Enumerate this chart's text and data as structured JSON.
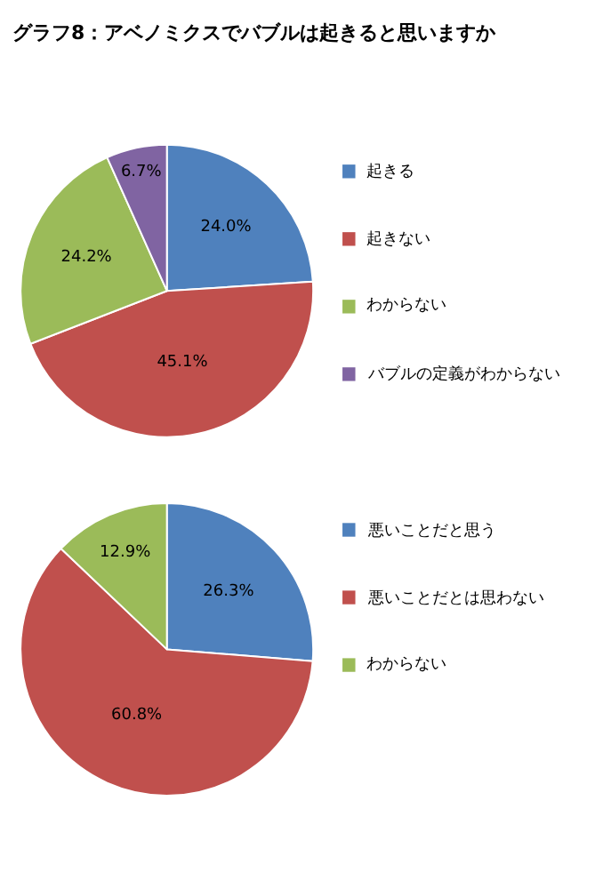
{
  "chart_data": [
    {
      "type": "pie",
      "title": "グラフ8：アベノミクスでバブルは起きると思いますか",
      "categories": [
        "起きる",
        "起きない",
        "わからない",
        "バブルの定義がわからない"
      ],
      "values": [
        24.0,
        45.1,
        24.2,
        6.7
      ],
      "colors": [
        "#4f81bd",
        "#c0504d",
        "#9bbb59",
        "#8064a2"
      ],
      "value_labels": [
        "24.0%",
        "45.1%",
        "24.2%",
        "6.7%"
      ],
      "legend": "right"
    },
    {
      "type": "pie",
      "categories": [
        "悪いことだと思う",
        "悪いことだとは思わない",
        "わからない"
      ],
      "values": [
        26.3,
        60.8,
        12.9
      ],
      "colors": [
        "#4f81bd",
        "#c0504d",
        "#9bbb59"
      ],
      "value_labels": [
        "26.3%",
        "60.8%",
        "12.9%"
      ],
      "legend": "right"
    }
  ]
}
